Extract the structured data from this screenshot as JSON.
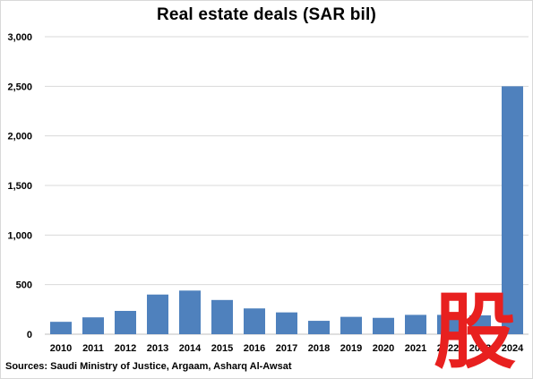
{
  "chart_data": {
    "type": "bar",
    "title": "Real estate deals (SAR bil)",
    "categories": [
      "2010",
      "2011",
      "2012",
      "2013",
      "2014",
      "2015",
      "2016",
      "2017",
      "2018",
      "2019",
      "2020",
      "2021",
      "2022",
      "2023",
      "2024"
    ],
    "values": [
      125,
      170,
      235,
      400,
      440,
      345,
      260,
      220,
      135,
      175,
      165,
      195,
      195,
      190,
      2500
    ],
    "ylim": [
      0,
      3000
    ],
    "yticks": [
      0,
      500,
      1000,
      1500,
      2000,
      2500,
      3000
    ],
    "ytick_labels": [
      "0",
      "500",
      "1,000",
      "1,500",
      "2,000",
      "2,500",
      "3,000"
    ],
    "grid": true,
    "bar_color": "#4f81bd"
  },
  "source": "Sources: Saudi Ministry of Justice, Argaam, Asharq Al-Awsat",
  "watermark": {
    "glyph": "股",
    "color": "#e8201f"
  }
}
